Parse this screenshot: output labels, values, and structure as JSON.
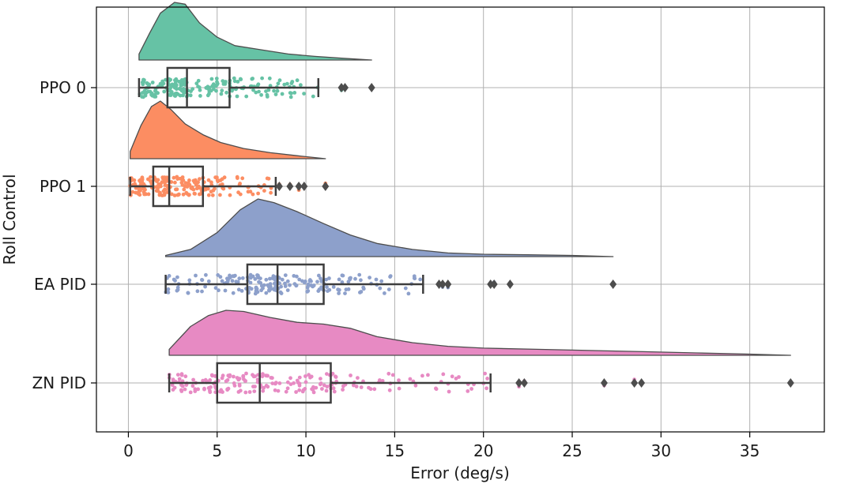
{
  "chart_data": {
    "type": "raincloud",
    "title": "",
    "xlabel": "Error (deg/s)",
    "ylabel": "Roll Control",
    "xlim": [
      -1.8,
      39.2
    ],
    "x_ticks": [
      0,
      5,
      10,
      15,
      20,
      25,
      30,
      35
    ],
    "grid": true,
    "series": [
      {
        "name": "PPO 0",
        "color": "#66c2a5",
        "box": {
          "whisker_low": 0.6,
          "q1": 2.2,
          "median": 3.3,
          "q3": 5.7,
          "whisker_high": 10.7
        },
        "outliers": [
          12.0,
          12.2,
          13.7
        ],
        "density": [
          [
            0.6,
            0.1
          ],
          [
            1.2,
            0.45
          ],
          [
            1.8,
            0.78
          ],
          [
            2.6,
            0.96
          ],
          [
            3.2,
            0.93
          ],
          [
            4.0,
            0.62
          ],
          [
            5.0,
            0.38
          ],
          [
            6.0,
            0.24
          ],
          [
            7.5,
            0.17
          ],
          [
            9.0,
            0.1
          ],
          [
            10.5,
            0.06
          ],
          [
            12.0,
            0.03
          ],
          [
            13.7,
            0.0
          ]
        ]
      },
      {
        "name": "PPO 1",
        "color": "#fc8d62",
        "box": {
          "whisker_low": 0.1,
          "q1": 1.4,
          "median": 2.3,
          "q3": 4.2,
          "whisker_high": 8.3
        },
        "outliers": [
          8.5,
          9.1,
          9.6,
          9.9,
          11.1
        ],
        "density": [
          [
            0.1,
            0.12
          ],
          [
            0.7,
            0.55
          ],
          [
            1.3,
            0.87
          ],
          [
            1.8,
            0.96
          ],
          [
            2.4,
            0.82
          ],
          [
            3.2,
            0.58
          ],
          [
            4.2,
            0.4
          ],
          [
            5.2,
            0.27
          ],
          [
            6.5,
            0.17
          ],
          [
            8.0,
            0.1
          ],
          [
            9.5,
            0.05
          ],
          [
            11.1,
            0.0
          ]
        ]
      },
      {
        "name": "EA PID",
        "color": "#8da0cb",
        "box": {
          "whisker_low": 2.1,
          "q1": 6.7,
          "median": 8.4,
          "q3": 11.0,
          "whisker_high": 16.6
        },
        "outliers": [
          17.5,
          17.7,
          18.0,
          20.4,
          20.6,
          21.5,
          27.3
        ],
        "density": [
          [
            2.1,
            0.02
          ],
          [
            3.5,
            0.12
          ],
          [
            5.0,
            0.4
          ],
          [
            6.3,
            0.78
          ],
          [
            7.3,
            0.96
          ],
          [
            8.2,
            0.9
          ],
          [
            9.5,
            0.75
          ],
          [
            11.0,
            0.55
          ],
          [
            12.5,
            0.36
          ],
          [
            14.0,
            0.22
          ],
          [
            16.0,
            0.12
          ],
          [
            18.0,
            0.06
          ],
          [
            20.0,
            0.04
          ],
          [
            22.5,
            0.03
          ],
          [
            25.0,
            0.02
          ],
          [
            27.3,
            0.0
          ]
        ]
      },
      {
        "name": "ZN PID",
        "color": "#e78ac3",
        "box": {
          "whisker_low": 2.3,
          "q1": 5.0,
          "median": 7.4,
          "q3": 11.4,
          "whisker_high": 20.4
        },
        "outliers": [
          22.0,
          22.3,
          26.8,
          28.5,
          28.9,
          37.3
        ],
        "density": [
          [
            2.3,
            0.1
          ],
          [
            3.5,
            0.48
          ],
          [
            4.5,
            0.66
          ],
          [
            5.5,
            0.75
          ],
          [
            6.5,
            0.73
          ],
          [
            8.0,
            0.63
          ],
          [
            9.5,
            0.55
          ],
          [
            11.0,
            0.52
          ],
          [
            12.5,
            0.45
          ],
          [
            14.0,
            0.31
          ],
          [
            16.0,
            0.21
          ],
          [
            18.0,
            0.15
          ],
          [
            20.0,
            0.12
          ],
          [
            23.0,
            0.1
          ],
          [
            26.0,
            0.08
          ],
          [
            29.0,
            0.06
          ],
          [
            32.0,
            0.04
          ],
          [
            35.0,
            0.02
          ],
          [
            37.3,
            0.0
          ]
        ]
      }
    ]
  }
}
